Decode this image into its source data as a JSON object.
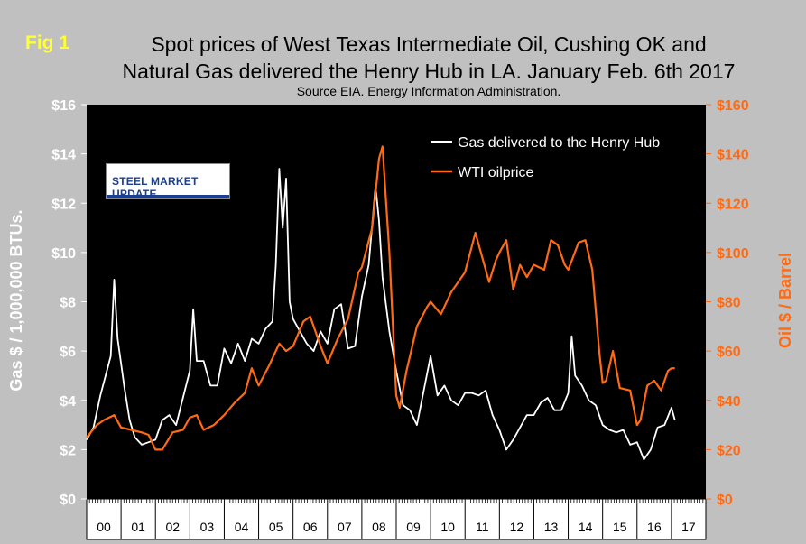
{
  "figure_label": "Fig 1",
  "title_line1": "Spot prices of West Texas Intermediate Oil, Cushing OK and",
  "title_line2": "Natural Gas delivered the Henry Hub in LA. January Feb. 6th 2017",
  "source": "Source EIA. Energy Information Administration.",
  "logo_text": "STEEL MARKET UPDATE",
  "colors": {
    "background": "#c0c0c0",
    "plot_bg": "#000000",
    "gas": "#ffffff",
    "oil": "#ff6a13",
    "left_axis": "#ffffff",
    "right_axis": "#ff6a13"
  },
  "chart_data": {
    "type": "line",
    "xlabel": "",
    "ylabel": "Gas $ / 1,000,000 BTUs.",
    "y2label": "Oil $ / Barrel",
    "xlim": [
      2000.0,
      2018.0
    ],
    "ylim": [
      0,
      16
    ],
    "y2lim": [
      0,
      160
    ],
    "yticks": [
      "$0",
      "$2",
      "$4",
      "$6",
      "$8",
      "$10",
      "$12",
      "$14",
      "$16"
    ],
    "y2ticks": [
      "$0",
      "$20",
      "$40",
      "$60",
      "$80",
      "$100",
      "$120",
      "$140",
      "$160"
    ],
    "xticks": [
      "00",
      "01",
      "02",
      "03",
      "04",
      "05",
      "06",
      "07",
      "08",
      "09",
      "10",
      "11",
      "12",
      "13",
      "14",
      "15",
      "16",
      "17"
    ],
    "legend_position": "top-right",
    "grid": false,
    "series": [
      {
        "name": "Gas delivered to the Henry Hub",
        "axis": "left",
        "x": [
          2000.0,
          2000.2,
          2000.4,
          2000.55,
          2000.7,
          2000.8,
          2000.9,
          2001.0,
          2001.1,
          2001.25,
          2001.4,
          2001.6,
          2001.8,
          2002.0,
          2002.2,
          2002.4,
          2002.6,
          2002.8,
          2003.0,
          2003.1,
          2003.2,
          2003.4,
          2003.6,
          2003.8,
          2004.0,
          2004.2,
          2004.4,
          2004.6,
          2004.8,
          2005.0,
          2005.2,
          2005.4,
          2005.5,
          2005.6,
          2005.7,
          2005.8,
          2005.9,
          2006.0,
          2006.2,
          2006.4,
          2006.6,
          2006.8,
          2007.0,
          2007.2,
          2007.4,
          2007.6,
          2007.8,
          2008.0,
          2008.2,
          2008.4,
          2008.5,
          2008.6,
          2008.8,
          2009.0,
          2009.2,
          2009.4,
          2009.6,
          2009.8,
          2010.0,
          2010.2,
          2010.4,
          2010.6,
          2010.8,
          2011.0,
          2011.2,
          2011.4,
          2011.6,
          2011.8,
          2012.0,
          2012.2,
          2012.4,
          2012.6,
          2012.8,
          2013.0,
          2013.2,
          2013.4,
          2013.6,
          2013.8,
          2014.0,
          2014.1,
          2014.2,
          2014.4,
          2014.6,
          2014.8,
          2015.0,
          2015.2,
          2015.4,
          2015.6,
          2015.8,
          2016.0,
          2016.2,
          2016.4,
          2016.6,
          2016.8,
          2017.0,
          2017.1
        ],
        "y": [
          2.4,
          2.9,
          4.2,
          5.0,
          5.8,
          8.9,
          6.5,
          5.5,
          4.5,
          3.2,
          2.5,
          2.2,
          2.3,
          2.4,
          3.2,
          3.4,
          3.0,
          4.1,
          5.2,
          7.7,
          5.6,
          5.6,
          4.6,
          4.6,
          6.1,
          5.5,
          6.3,
          5.6,
          6.5,
          6.3,
          6.9,
          7.2,
          9.5,
          13.4,
          11.0,
          13.0,
          8.0,
          7.3,
          6.8,
          6.3,
          6.0,
          6.8,
          6.3,
          7.7,
          7.9,
          6.1,
          6.2,
          8.2,
          9.5,
          12.7,
          11.3,
          9.0,
          6.8,
          5.2,
          3.8,
          3.6,
          3.0,
          4.4,
          5.8,
          4.2,
          4.6,
          4.0,
          3.8,
          4.3,
          4.3,
          4.2,
          4.4,
          3.4,
          2.8,
          2.0,
          2.4,
          2.9,
          3.4,
          3.4,
          3.9,
          4.1,
          3.6,
          3.6,
          4.3,
          6.6,
          5.0,
          4.6,
          4.0,
          3.8,
          3.0,
          2.8,
          2.7,
          2.8,
          2.2,
          2.3,
          1.6,
          2.0,
          2.9,
          3.0,
          3.7,
          3.2
        ]
      },
      {
        "name": "WTI oilprice",
        "axis": "right",
        "x": [
          2000.0,
          2000.3,
          2000.5,
          2000.8,
          2001.0,
          2001.3,
          2001.6,
          2001.8,
          2002.0,
          2002.2,
          2002.5,
          2002.8,
          2003.0,
          2003.2,
          2003.4,
          2003.7,
          2004.0,
          2004.3,
          2004.6,
          2004.8,
          2005.0,
          2005.3,
          2005.6,
          2005.8,
          2006.0,
          2006.3,
          2006.5,
          2006.8,
          2007.0,
          2007.3,
          2007.6,
          2007.9,
          2008.0,
          2008.3,
          2008.5,
          2008.6,
          2008.8,
          2009.0,
          2009.1,
          2009.3,
          2009.6,
          2009.9,
          2010.0,
          2010.3,
          2010.6,
          2010.9,
          2011.0,
          2011.3,
          2011.5,
          2011.7,
          2011.9,
          2012.0,
          2012.2,
          2012.4,
          2012.6,
          2012.8,
          2013.0,
          2013.3,
          2013.5,
          2013.7,
          2013.9,
          2014.0,
          2014.3,
          2014.5,
          2014.7,
          2014.9,
          2015.0,
          2015.1,
          2015.3,
          2015.5,
          2015.8,
          2016.0,
          2016.1,
          2016.3,
          2016.5,
          2016.7,
          2016.9,
          2017.0,
          2017.1
        ],
        "y": [
          25,
          30,
          32,
          34,
          29,
          28,
          27,
          26,
          20,
          20,
          27,
          28,
          33,
          34,
          28,
          30,
          34,
          39,
          43,
          53,
          46,
          54,
          63,
          60,
          62,
          72,
          74,
          62,
          55,
          65,
          73,
          92,
          94,
          110,
          138,
          143,
          100,
          42,
          37,
          52,
          70,
          78,
          80,
          75,
          84,
          90,
          92,
          108,
          98,
          88,
          97,
          100,
          105,
          85,
          95,
          90,
          95,
          93,
          105,
          103,
          95,
          93,
          104,
          105,
          93,
          60,
          47,
          48,
          60,
          45,
          44,
          30,
          32,
          46,
          48,
          44,
          52,
          53,
          53
        ]
      }
    ]
  }
}
